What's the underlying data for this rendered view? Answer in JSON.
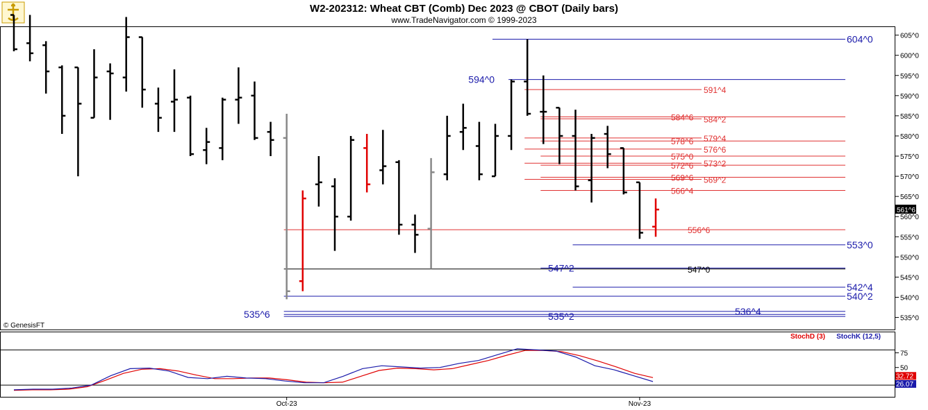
{
  "header": {
    "title": "W2-202312:  Wheat CBT (Comb) Dec 2023 @ CBOT  (Daily bars)",
    "subtitle": "www.TradeNavigator.com © 1999-2023"
  },
  "watermark": "© GenesisFT",
  "colors": {
    "bar_black": "#000000",
    "bar_red": "#e00000",
    "bar_gray": "#888888",
    "bar_green": "#00cc00",
    "level_blue": "#1a1aaa",
    "level_red": "#e03030",
    "level_black": "#000000",
    "stoch_d": "#e00000",
    "stoch_k": "#1a1aaa"
  },
  "chart_data": [
    {
      "type": "ohlc",
      "title": "W2-202312:  Wheat CBT (Comb) Dec 2023 @ CBOT  (Daily bars)",
      "price_format": "cents^eighths",
      "ylim": [
        532,
        607
      ],
      "y_ticks": [
        "535^0",
        "540^0",
        "545^0",
        "550^0",
        "555^0",
        "560^0",
        "565^0",
        "570^0",
        "575^0",
        "580^0",
        "585^0",
        "590^0",
        "595^0",
        "600^0",
        "605^0"
      ],
      "last_price": "561^6",
      "x_labels": [
        {
          "label": "Oct-23",
          "bar": 17
        },
        {
          "label": "Nov-23",
          "bar": 39
        }
      ],
      "bars": [
        {
          "o": 610,
          "h": 615,
          "l": 601,
          "c": 601.5,
          "color": "black"
        },
        {
          "o": 603,
          "h": 613,
          "l": 598.5,
          "c": 600.5,
          "color": "black"
        },
        {
          "o": 602.5,
          "h": 603.5,
          "l": 590.5,
          "c": 596,
          "color": "black"
        },
        {
          "o": 597,
          "h": 597.5,
          "l": 580.5,
          "c": 585,
          "color": "black"
        },
        {
          "o": 597,
          "h": 597,
          "l": 570,
          "c": 588,
          "color": "black"
        },
        {
          "o": 584.5,
          "h": 601.5,
          "l": 584.5,
          "c": 594.5,
          "color": "black"
        },
        {
          "o": 596,
          "h": 598,
          "l": 584,
          "c": 595.5,
          "color": "black"
        },
        {
          "o": 594.5,
          "h": 609.5,
          "l": 591,
          "c": 604.5,
          "color": "black"
        },
        {
          "o": 604.5,
          "h": 604.5,
          "l": 587,
          "c": 591.5,
          "color": "black"
        },
        {
          "o": 588,
          "h": 592,
          "l": 581,
          "c": 584.5,
          "color": "black"
        },
        {
          "o": 588.5,
          "h": 596.5,
          "l": 581,
          "c": 589,
          "color": "black"
        },
        {
          "o": 589.5,
          "h": 590,
          "l": 575,
          "c": 575.5,
          "color": "black"
        },
        {
          "o": 576.5,
          "h": 582,
          "l": 573,
          "c": 578.5,
          "color": "black"
        },
        {
          "o": 577,
          "h": 589.5,
          "l": 574,
          "c": 589,
          "color": "black"
        },
        {
          "o": 589,
          "h": 597,
          "l": 583,
          "c": 589.5,
          "color": "black"
        },
        {
          "o": 590,
          "h": 593.5,
          "l": 579,
          "c": 579.5,
          "color": "black"
        },
        {
          "o": 581,
          "h": 583.5,
          "l": 575,
          "c": 579,
          "color": "black"
        },
        {
          "o": 579.5,
          "h": 585.5,
          "l": 539.5,
          "c": 541.5,
          "color": "gray"
        },
        {
          "o": 544,
          "h": 566.5,
          "l": 541.5,
          "c": 564.5,
          "color": "red"
        },
        {
          "o": 568,
          "h": 575,
          "l": 562.5,
          "c": 568.5,
          "color": "black"
        },
        {
          "o": 567.5,
          "h": 569.5,
          "l": 551.5,
          "c": 560,
          "color": "black"
        },
        {
          "o": 560,
          "h": 580,
          "l": 559,
          "c": 579,
          "color": "black"
        },
        {
          "o": 577,
          "h": 580.5,
          "l": 566,
          "c": 568,
          "color": "red"
        },
        {
          "o": 571.5,
          "h": 581.5,
          "l": 568,
          "c": 572.5,
          "color": "black"
        },
        {
          "o": 573.5,
          "h": 574,
          "l": 555.5,
          "c": 558,
          "color": "black"
        },
        {
          "o": 558,
          "h": 560.5,
          "l": 551,
          "c": 555.5,
          "color": "black"
        },
        {
          "o": 557,
          "h": 574.5,
          "l": 547,
          "c": 571,
          "color": "gray"
        },
        {
          "o": 570.5,
          "h": 585,
          "l": 569,
          "c": 580,
          "color": "black"
        },
        {
          "o": 581,
          "h": 588,
          "l": 576.5,
          "c": 582,
          "color": "black"
        },
        {
          "o": 577.5,
          "h": 583.5,
          "l": 569,
          "c": 570.5,
          "color": "black"
        },
        {
          "o": 570,
          "h": 583,
          "l": 570,
          "c": 580,
          "color": "black"
        },
        {
          "o": 580,
          "h": 594,
          "l": 576.5,
          "c": 593.5,
          "color": "black"
        },
        {
          "o": 593.5,
          "h": 604,
          "l": 585,
          "c": 585.5,
          "color": "black"
        },
        {
          "o": 586,
          "h": 595,
          "l": 578,
          "c": 586,
          "color": "black"
        },
        {
          "o": 587,
          "h": 587,
          "l": 573,
          "c": 580,
          "color": "black"
        },
        {
          "o": 580,
          "h": 586.5,
          "l": 566.5,
          "c": 567.5,
          "color": "black"
        },
        {
          "o": 569,
          "h": 580.5,
          "l": 563.5,
          "c": 579.5,
          "color": "black"
        },
        {
          "o": 580.5,
          "h": 582.5,
          "l": 572,
          "c": 575.5,
          "color": "black"
        },
        {
          "o": 577,
          "h": 577,
          "l": 565.5,
          "c": 566,
          "color": "black"
        },
        {
          "o": 568.5,
          "h": 568.5,
          "l": 554.5,
          "c": 556,
          "color": "black"
        },
        {
          "o": 557.5,
          "h": 564.5,
          "l": 555,
          "c": 561.75,
          "color": "red"
        }
      ],
      "levels": [
        {
          "price": 604,
          "label": "604^0",
          "color": "blue",
          "label_pos": "right",
          "from_bar": 30
        },
        {
          "price": 594,
          "label": "594^0",
          "color": "blue",
          "label_pos": "left",
          "from_bar": 31
        },
        {
          "price": 591.5,
          "label": "591^4",
          "color": "red",
          "label_pos": "right",
          "from_bar": 32
        },
        {
          "price": 584.75,
          "label": "584^6",
          "color": "red",
          "label_pos": "mid",
          "from_bar": 33
        },
        {
          "price": 584.25,
          "label": "584^2",
          "color": "red",
          "label_pos": "right",
          "from_bar": 33
        },
        {
          "price": 579.5,
          "label": "579^4",
          "color": "red",
          "label_pos": "right",
          "from_bar": 32
        },
        {
          "price": 578.75,
          "label": "578^6",
          "color": "red",
          "label_pos": "mid",
          "from_bar": 33
        },
        {
          "price": 576.75,
          "label": "576^6",
          "color": "red",
          "label_pos": "right",
          "from_bar": 32
        },
        {
          "price": 575,
          "label": "575^0",
          "color": "red",
          "label_pos": "mid",
          "from_bar": 33
        },
        {
          "price": 573.25,
          "label": "573^2",
          "color": "red",
          "label_pos": "right",
          "from_bar": 32
        },
        {
          "price": 572.75,
          "label": "572^6",
          "color": "red",
          "label_pos": "mid",
          "from_bar": 33
        },
        {
          "price": 569.75,
          "label": "569^6",
          "color": "red",
          "label_pos": "mid",
          "from_bar": 33
        },
        {
          "price": 569.25,
          "label": "569^2",
          "color": "red",
          "label_pos": "right",
          "from_bar": 32
        },
        {
          "price": 566.5,
          "label": "566^4",
          "color": "red",
          "label_pos": "mid",
          "from_bar": 33
        },
        {
          "price": 556.75,
          "label": "556^6",
          "color": "red",
          "label_pos": "right",
          "from_bar": 17
        },
        {
          "price": 553,
          "label": "553^0",
          "color": "blue",
          "label_pos": "right",
          "from_bar": 35
        },
        {
          "price": 547.25,
          "label": "547^2",
          "color": "blue",
          "label_pos": "mid",
          "from_bar": 33
        },
        {
          "price": 547,
          "label": "547^0",
          "color": "black",
          "label_pos": "right",
          "from_bar": 17
        },
        {
          "price": 542.5,
          "label": "542^4",
          "color": "blue",
          "label_pos": "right",
          "from_bar": 35
        },
        {
          "price": 540.25,
          "label": "540^2",
          "color": "blue",
          "label_pos": "right",
          "from_bar": 17
        },
        {
          "price": 536.5,
          "label": "536^4",
          "color": "blue",
          "label_pos": "mid",
          "from_bar": 17
        },
        {
          "price": 535.75,
          "label": "535^6",
          "color": "blue",
          "label_pos": "left",
          "from_bar": 17
        },
        {
          "price": 535.25,
          "label": "535^2",
          "color": "blue",
          "label_pos": "mid",
          "from_bar": 17
        }
      ]
    },
    {
      "type": "line",
      "title": "",
      "ylim": [
        0,
        100
      ],
      "y_ticks": [
        50,
        75
      ],
      "ref_lines": [
        20,
        80
      ],
      "series": [
        {
          "name": "StochD (3)",
          "color": "red",
          "last_label": "32.72",
          "values": [
            11,
            12,
            12,
            13,
            17,
            28,
            40,
            47,
            48,
            44,
            37,
            31,
            31,
            32,
            32,
            29,
            25,
            24,
            25,
            35,
            45,
            49,
            48,
            46,
            48,
            55,
            62,
            71,
            79,
            79,
            77,
            70,
            61,
            51,
            40,
            32.72
          ]
        },
        {
          "name": "StochK (12,5)",
          "color": "blue",
          "last_label": "26.07",
          "values": [
            12,
            13,
            13,
            15,
            20,
            36,
            48,
            49,
            44,
            33,
            31,
            35,
            32,
            31,
            27,
            24,
            24,
            35,
            48,
            53,
            51,
            49,
            50,
            57,
            62,
            72,
            82,
            80,
            78,
            68,
            53,
            46,
            36,
            26.07
          ]
        }
      ]
    }
  ]
}
